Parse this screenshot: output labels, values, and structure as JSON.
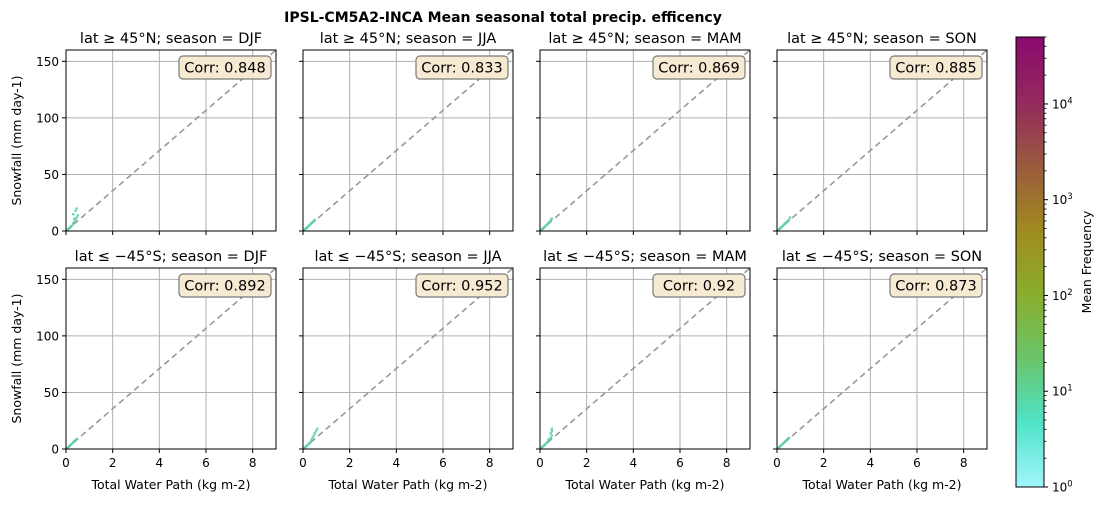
{
  "title": "IPSL-CM5A2-INCA Mean seasonal total precip. efficency",
  "colorbar": {
    "label": "Mean Frequency",
    "scale": "log",
    "range": [
      1,
      50000
    ],
    "tick_values": [
      1,
      10,
      100,
      1000,
      10000
    ],
    "tick_labels": [
      "10^0",
      "10^1",
      "10^2",
      "10^3",
      "10^4"
    ],
    "colors": [
      "#a2f6fc",
      "#4fe3c8",
      "#6ac46a",
      "#8aae2c",
      "#a08a1e",
      "#9a5a3e",
      "#94295e",
      "#8a0a6e"
    ]
  },
  "reference_line_color": "#999999",
  "scatter_color": "#58cfa0",
  "chart_data": [
    {
      "type": "scatter",
      "title": "lat ≥ 45°N; season = DJF",
      "corr_label": "Corr: 0.848",
      "correlation": 0.848,
      "xlabel": "",
      "ylabel": "Snowfall (mm day-1)",
      "xlim": [
        0,
        9
      ],
      "ylim": [
        0,
        160
      ],
      "x": [
        0.05,
        0.1,
        0.15,
        0.2,
        0.25,
        0.3,
        0.35,
        0.4,
        0.45,
        0.5,
        0.3,
        0.4,
        0.45,
        0.35
      ],
      "y": [
        1,
        2,
        3,
        4,
        5,
        7,
        8,
        10,
        12,
        14,
        15,
        18,
        20,
        11
      ]
    },
    {
      "type": "scatter",
      "title": "lat ≥ 45°N; season = JJA",
      "corr_label": "Corr: 0.833",
      "correlation": 0.833,
      "xlabel": "",
      "ylabel": "",
      "xlim": [
        0,
        9
      ],
      "ylim": [
        0,
        160
      ],
      "x": [
        0.05,
        0.1,
        0.15,
        0.2,
        0.25,
        0.3,
        0.35,
        0.4,
        0.45,
        0.5
      ],
      "y": [
        1,
        2,
        3,
        4,
        5,
        6,
        7,
        8,
        9,
        10
      ]
    },
    {
      "type": "scatter",
      "title": "lat ≥ 45°N; season = MAM",
      "corr_label": "Corr: 0.869",
      "correlation": 0.869,
      "xlabel": "",
      "ylabel": "",
      "xlim": [
        0,
        9
      ],
      "ylim": [
        0,
        160
      ],
      "x": [
        0.05,
        0.1,
        0.15,
        0.2,
        0.25,
        0.3,
        0.35,
        0.4,
        0.45,
        0.5
      ],
      "y": [
        1,
        2,
        3,
        4,
        5,
        6,
        7,
        8,
        10,
        11
      ]
    },
    {
      "type": "scatter",
      "title": "lat ≥ 45°N; season = SON",
      "corr_label": "Corr: 0.885",
      "correlation": 0.885,
      "xlabel": "",
      "ylabel": "",
      "xlim": [
        0,
        9
      ],
      "ylim": [
        0,
        160
      ],
      "x": [
        0.05,
        0.1,
        0.15,
        0.2,
        0.25,
        0.3,
        0.35,
        0.4,
        0.45,
        0.5,
        0.55
      ],
      "y": [
        1,
        2,
        3,
        4,
        5,
        6,
        7,
        8,
        9,
        10,
        12
      ]
    },
    {
      "type": "scatter",
      "title": "lat ≤ −45°S; season = DJF",
      "corr_label": "Corr: 0.892",
      "correlation": 0.892,
      "xlabel": "Total Water Path (kg m-2)",
      "ylabel": "Snowfall (mm day-1)",
      "xlim": [
        0,
        9
      ],
      "ylim": [
        0,
        160
      ],
      "x": [
        0.05,
        0.1,
        0.15,
        0.2,
        0.25,
        0.3,
        0.35,
        0.4,
        0.45
      ],
      "y": [
        1,
        2,
        3,
        4,
        5,
        6,
        7,
        8,
        9
      ]
    },
    {
      "type": "scatter",
      "title": "lat ≤ −45°S; season = JJA",
      "corr_label": "Corr: 0.952",
      "correlation": 0.952,
      "xlabel": "Total Water Path (kg m-2)",
      "ylabel": "",
      "xlim": [
        0,
        9
      ],
      "ylim": [
        0,
        160
      ],
      "x": [
        0.05,
        0.1,
        0.15,
        0.2,
        0.25,
        0.3,
        0.35,
        0.4,
        0.45,
        0.5,
        0.55,
        0.6
      ],
      "y": [
        1,
        2,
        3,
        4,
        5,
        6,
        8,
        10,
        12,
        14,
        16,
        18
      ]
    },
    {
      "type": "scatter",
      "title": "lat ≤ −45°S; season = MAM",
      "corr_label": "Corr: 0.92",
      "correlation": 0.92,
      "xlabel": "Total Water Path (kg m-2)",
      "ylabel": "",
      "xlim": [
        0,
        9
      ],
      "ylim": [
        0,
        160
      ],
      "x": [
        0.05,
        0.1,
        0.15,
        0.2,
        0.25,
        0.3,
        0.35,
        0.4,
        0.45,
        0.5,
        0.45,
        0.5,
        0.5
      ],
      "y": [
        1,
        2,
        3,
        4,
        5,
        6,
        8,
        9,
        10,
        12,
        14,
        16,
        18
      ]
    },
    {
      "type": "scatter",
      "title": "lat ≤ −45°S; season = SON",
      "corr_label": "Corr: 0.873",
      "correlation": 0.873,
      "xlabel": "Total Water Path (kg m-2)",
      "ylabel": "",
      "xlim": [
        0,
        9
      ],
      "ylim": [
        0,
        160
      ],
      "x": [
        0.05,
        0.1,
        0.15,
        0.2,
        0.25,
        0.3,
        0.35,
        0.4,
        0.45,
        0.5
      ],
      "y": [
        1,
        2,
        3,
        4,
        5,
        6,
        7,
        8,
        9,
        10
      ]
    }
  ],
  "x_ticks": [
    0,
    2,
    4,
    6,
    8
  ],
  "y_ticks": [
    0,
    50,
    100,
    150
  ]
}
